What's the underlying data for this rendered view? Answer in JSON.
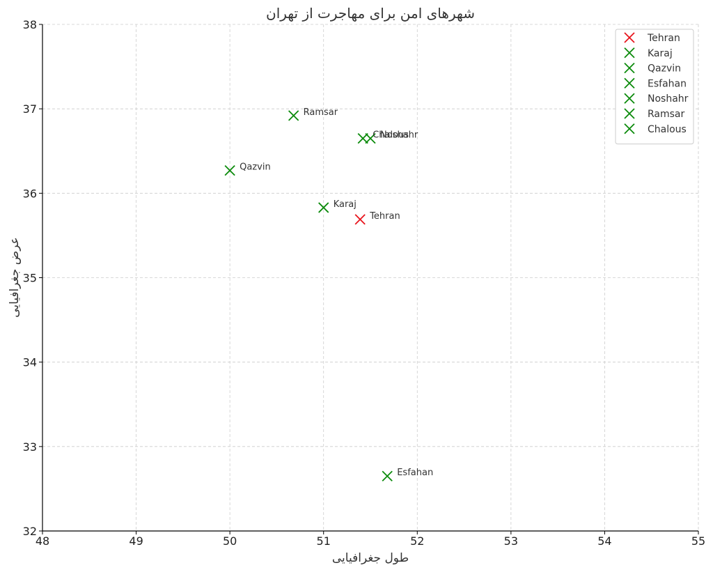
{
  "chart_data": {
    "type": "scatter",
    "title": "شهرهای امن برای مهاجرت از تهران",
    "xlabel": "طول جغرافیایی",
    "ylabel": "عرض جغرافیایی",
    "xlim": [
      48,
      55
    ],
    "ylim": [
      32,
      38
    ],
    "xticks": [
      48,
      49,
      50,
      51,
      52,
      53,
      54,
      55
    ],
    "yticks": [
      32,
      33,
      34,
      35,
      36,
      37,
      38
    ],
    "grid": true,
    "legend_position": "top-right",
    "marker": "x",
    "series": [
      {
        "name": "Tehran",
        "color": "#e8141c",
        "x": 51.39,
        "y": 35.69,
        "label": "Tehran"
      },
      {
        "name": "Karaj",
        "color": "#0a8a0a",
        "x": 51.0,
        "y": 35.83,
        "label": "Karaj"
      },
      {
        "name": "Qazvin",
        "color": "#0a8a0a",
        "x": 50.0,
        "y": 36.27,
        "label": "Qazvin"
      },
      {
        "name": "Esfahan",
        "color": "#0a8a0a",
        "x": 51.68,
        "y": 32.65,
        "label": "Esfahan"
      },
      {
        "name": "Noshahr",
        "color": "#0a8a0a",
        "x": 51.5,
        "y": 36.65,
        "label": "Noshahr"
      },
      {
        "name": "Ramsar",
        "color": "#0a8a0a",
        "x": 50.68,
        "y": 36.92,
        "label": "Ramsar"
      },
      {
        "name": "Chalous",
        "color": "#0a8a0a",
        "x": 51.42,
        "y": 36.65,
        "label": "Chalous"
      }
    ]
  }
}
